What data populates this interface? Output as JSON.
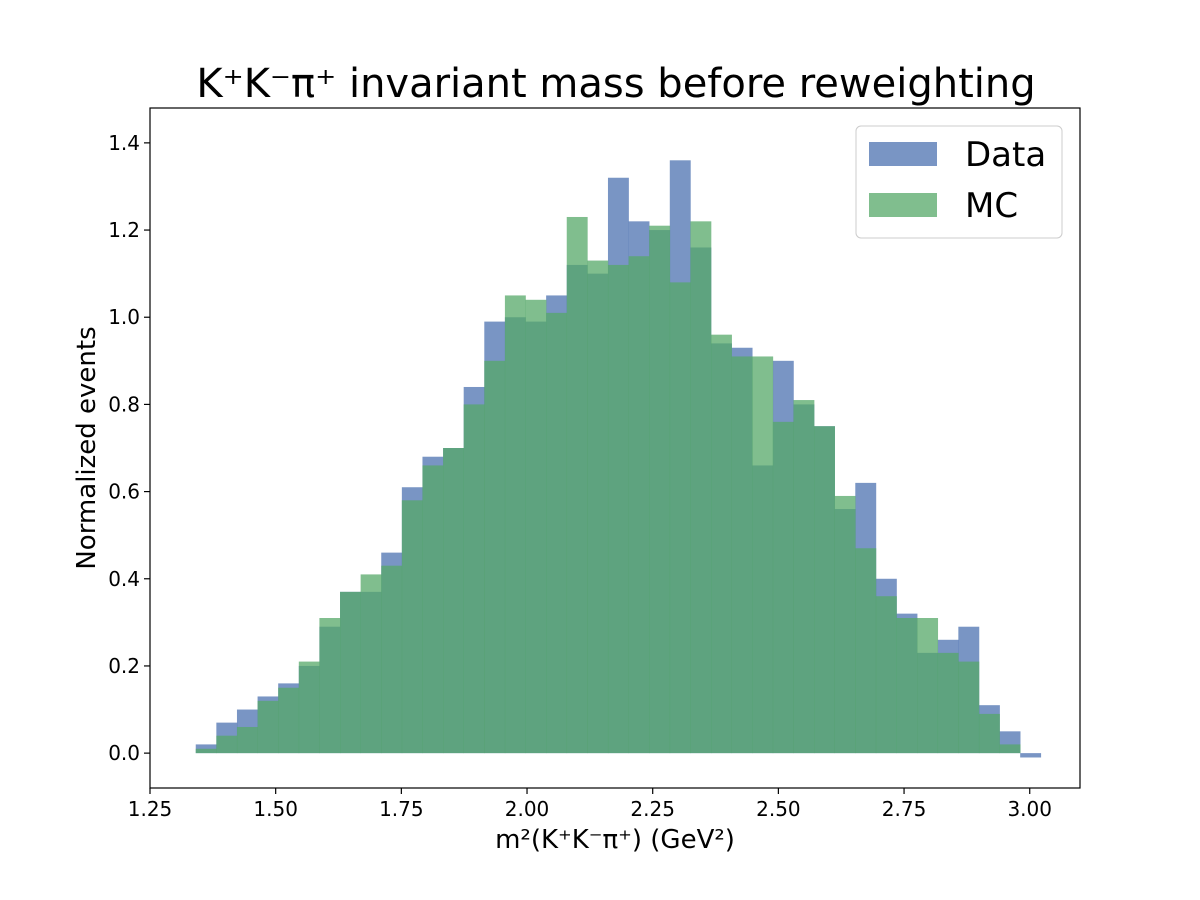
{
  "chart_data": {
    "type": "bar",
    "title": "K⁺K⁻π⁺ invariant mass before reweighting",
    "xlabel": "m²(K⁺K⁻π⁺) (GeV²)",
    "ylabel": "Normalized events",
    "xlim": [
      1.25,
      3.1
    ],
    "ylim": [
      -0.08,
      1.48
    ],
    "xticks": [
      "1.25",
      "1.50",
      "1.75",
      "2.00",
      "2.25",
      "2.50",
      "2.75",
      "3.00"
    ],
    "yticks": [
      "0.0",
      "0.2",
      "0.4",
      "0.6",
      "0.8",
      "1.0",
      "1.2",
      "1.4"
    ],
    "grid": false,
    "legend_position": "top-right",
    "colors": {
      "data": "#4c72b0",
      "mc": "#55a868"
    },
    "bin_edges": [
      1.3,
      1.341,
      1.382,
      1.423,
      1.464,
      1.505,
      1.546,
      1.587,
      1.628,
      1.669,
      1.71,
      1.751,
      1.792,
      1.833,
      1.874,
      1.915,
      1.956,
      1.997,
      2.038,
      2.079,
      2.12,
      2.161,
      2.202,
      2.243,
      2.284,
      2.325,
      2.366,
      2.407,
      2.448,
      2.489,
      2.53,
      2.571,
      2.612,
      2.653,
      2.694,
      2.735,
      2.776,
      2.817,
      2.858,
      2.899,
      2.94,
      2.981,
      3.022
    ],
    "series": [
      {
        "name": "Data",
        "values": [
          0.0,
          0.02,
          0.07,
          0.1,
          0.13,
          0.16,
          0.2,
          0.29,
          0.37,
          0.37,
          0.46,
          0.61,
          0.68,
          0.7,
          0.84,
          0.99,
          1.0,
          0.99,
          1.05,
          1.12,
          1.1,
          1.32,
          1.22,
          1.2,
          1.36,
          1.16,
          0.94,
          0.93,
          0.66,
          0.9,
          0.8,
          0.75,
          0.56,
          0.62,
          0.4,
          0.32,
          0.23,
          0.26,
          0.29,
          0.11,
          0.05,
          -0.01
        ]
      },
      {
        "name": "MC",
        "values": [
          0.0,
          0.01,
          0.04,
          0.06,
          0.12,
          0.15,
          0.21,
          0.31,
          0.37,
          0.41,
          0.43,
          0.58,
          0.66,
          0.7,
          0.8,
          0.9,
          1.05,
          1.04,
          1.01,
          1.23,
          1.13,
          1.12,
          1.14,
          1.21,
          1.08,
          1.22,
          0.96,
          0.91,
          0.91,
          0.76,
          0.81,
          0.75,
          0.59,
          0.47,
          0.36,
          0.31,
          0.31,
          0.23,
          0.21,
          0.09,
          0.02,
          0.0
        ]
      }
    ]
  }
}
